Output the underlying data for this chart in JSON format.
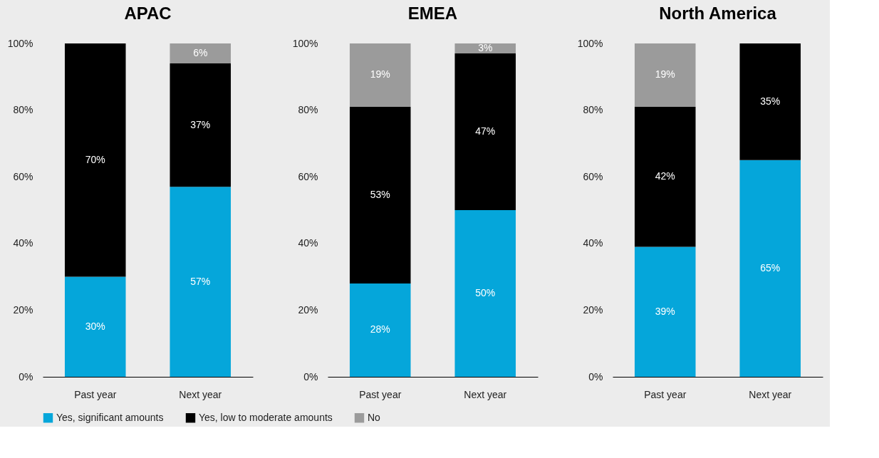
{
  "chart_data": [
    {
      "type": "bar",
      "title": "APAC",
      "stacked": true,
      "categories": [
        "Past year",
        "Next year"
      ],
      "legend": "bottom",
      "grid": false,
      "ylim": [
        0,
        100
      ],
      "yticks": [
        {
          "value": 0,
          "label": "0%"
        },
        {
          "value": 20,
          "label": "20%"
        },
        {
          "value": 40,
          "label": "40%"
        },
        {
          "value": 60,
          "label": "60%"
        },
        {
          "value": 80,
          "label": "80%"
        },
        {
          "value": 100,
          "label": "100%"
        }
      ],
      "series": [
        {
          "name": "Yes, significant amounts",
          "color": "#05a6da",
          "values": [
            30,
            57
          ],
          "value_labels": [
            "30%",
            "57%"
          ]
        },
        {
          "name": "Yes, low to moderate amounts",
          "color": "#000000",
          "values": [
            70,
            37
          ],
          "value_labels": [
            "70%",
            "37%"
          ]
        },
        {
          "name": "No",
          "color": "#9b9b9b",
          "values": [
            0,
            6
          ],
          "value_labels": [
            null,
            "6%"
          ]
        }
      ]
    },
    {
      "type": "bar",
      "title": "EMEA",
      "stacked": true,
      "categories": [
        "Past year",
        "Next year"
      ],
      "legend": "bottom",
      "grid": false,
      "ylim": [
        0,
        100
      ],
      "yticks": [
        {
          "value": 0,
          "label": "0%"
        },
        {
          "value": 20,
          "label": "20%"
        },
        {
          "value": 40,
          "label": "40%"
        },
        {
          "value": 60,
          "label": "60%"
        },
        {
          "value": 80,
          "label": "80%"
        },
        {
          "value": 100,
          "label": "100%"
        }
      ],
      "series": [
        {
          "name": "Yes, significant amounts",
          "color": "#05a6da",
          "values": [
            28,
            50
          ],
          "value_labels": [
            "28%",
            "50%"
          ]
        },
        {
          "name": "Yes, low to moderate amounts",
          "color": "#000000",
          "values": [
            53,
            47
          ],
          "value_labels": [
            "53%",
            "47%"
          ]
        },
        {
          "name": "No",
          "color": "#9b9b9b",
          "values": [
            19,
            3
          ],
          "value_labels": [
            "19%",
            "3%"
          ]
        }
      ]
    },
    {
      "type": "bar",
      "title": "North America",
      "stacked": true,
      "categories": [
        "Past year",
        "Next year"
      ],
      "legend": "bottom",
      "grid": false,
      "ylim": [
        0,
        100
      ],
      "yticks": [
        {
          "value": 0,
          "label": "0%"
        },
        {
          "value": 20,
          "label": "20%"
        },
        {
          "value": 40,
          "label": "40%"
        },
        {
          "value": 60,
          "label": "60%"
        },
        {
          "value": 80,
          "label": "80%"
        },
        {
          "value": 100,
          "label": "100%"
        }
      ],
      "series": [
        {
          "name": "Yes, significant amounts",
          "color": "#05a6da",
          "values": [
            39,
            65
          ],
          "value_labels": [
            "39%",
            "65%"
          ]
        },
        {
          "name": "Yes, low to moderate amounts",
          "color": "#000000",
          "values": [
            42,
            35
          ],
          "value_labels": [
            "42%",
            "35%"
          ]
        },
        {
          "name": "No",
          "color": "#9b9b9b",
          "values": [
            19,
            0
          ],
          "value_labels": [
            "19%",
            null
          ]
        }
      ]
    }
  ]
}
